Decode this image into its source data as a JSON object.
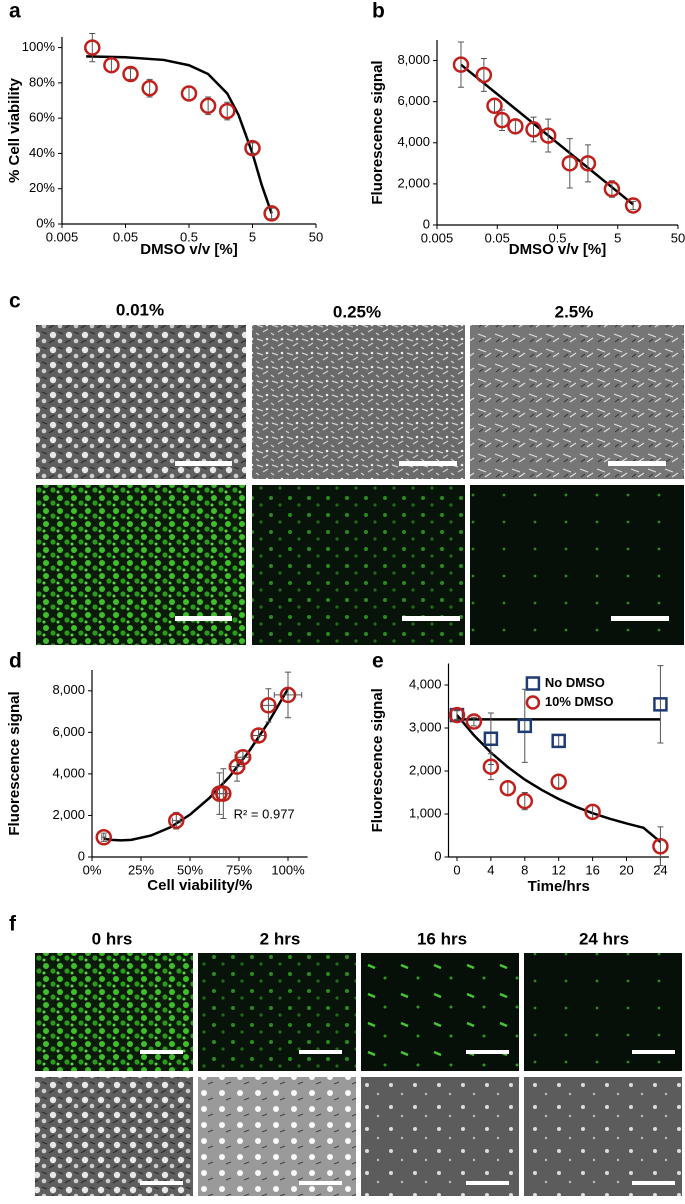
{
  "panel_labels": [
    "a",
    "b",
    "c",
    "d",
    "e",
    "f"
  ],
  "image_panels": {
    "c": {
      "labels": [
        "0.01%",
        "0.25%",
        "2.5%"
      ]
    },
    "f": {
      "labels": [
        "0 hrs",
        "2 hrs",
        "16 hrs",
        "24 hrs"
      ]
    }
  },
  "chart_data": [
    {
      "type": "scatter",
      "xlabel": "DMSO v/v [%]",
      "ylabel": "% Cell viability",
      "x_scale": "log",
      "xlim": [
        0.005,
        50
      ],
      "ylim": [
        0,
        106
      ],
      "xticks": [
        0.005,
        0.05,
        0.5,
        5,
        50
      ],
      "yticks": [
        {
          "value": 0,
          "label": "0%"
        },
        {
          "value": 20,
          "label": "20%"
        },
        {
          "value": 40,
          "label": "40%"
        },
        {
          "value": 60,
          "label": "60%"
        },
        {
          "value": 80,
          "label": "80%"
        },
        {
          "value": 100,
          "label": "100%"
        }
      ],
      "series": [
        {
          "mode": "markers",
          "marker": "circle",
          "color": "#c0201c",
          "x": [
            0.015,
            0.03,
            0.06,
            0.12,
            0.5,
            1,
            2,
            5,
            10
          ],
          "values": [
            100,
            90,
            85,
            77,
            74,
            67,
            64,
            43,
            6
          ],
          "errors": [
            8,
            4,
            3,
            5,
            4,
            5,
            5,
            3,
            3
          ]
        },
        {
          "mode": "line",
          "color": "#000000",
          "x": [
            0.012,
            0.05,
            0.2,
            0.5,
            1,
            2,
            3,
            5,
            7,
            10
          ],
          "values": [
            95,
            94.5,
            93,
            90,
            85,
            74,
            62,
            40,
            22,
            6
          ]
        }
      ]
    },
    {
      "type": "scatter",
      "xlabel": "DMSO v/v [%]",
      "ylabel": "Fluorescence signal",
      "x_scale": "log",
      "xlim": [
        0.005,
        50
      ],
      "ylim": [
        0,
        9000
      ],
      "xticks": [
        0.005,
        0.05,
        0.5,
        5,
        50
      ],
      "yticks": [
        0,
        {
          "value": 2000,
          "label": "2,000"
        },
        {
          "value": 4000,
          "label": "4,000"
        },
        {
          "value": 6000,
          "label": "6,000"
        },
        {
          "value": 8000,
          "label": "8,000"
        }
      ],
      "series": [
        {
          "mode": "markers",
          "marker": "circle",
          "color": "#c0201c",
          "x": [
            0.0125,
            0.03,
            0.045,
            0.06,
            0.1,
            0.2,
            0.35,
            0.8,
            1.6,
            4,
            9
          ],
          "values": [
            7800,
            7300,
            5800,
            5100,
            4800,
            4650,
            4350,
            3000,
            3000,
            1750,
            950
          ],
          "errors": [
            1100,
            800,
            300,
            500,
            300,
            600,
            800,
            1200,
            900,
            400,
            200
          ]
        },
        {
          "mode": "line",
          "color": "#000000",
          "x": [
            0.0125,
            9
          ],
          "values": [
            7800,
            1000
          ]
        }
      ]
    },
    {
      "type": "scatter",
      "xlabel": "Cell viability/%",
      "ylabel": "Fluorescence signal",
      "x_scale": "linear",
      "xlim": [
        0,
        110
      ],
      "ylim": [
        0,
        9000
      ],
      "xticks": [
        {
          "value": 0,
          "label": "0%"
        },
        {
          "value": 25,
          "label": "25%"
        },
        {
          "value": 50,
          "label": "50%"
        },
        {
          "value": 75,
          "label": "75%"
        },
        {
          "value": 100,
          "label": "100%"
        }
      ],
      "yticks": [
        0,
        {
          "value": 2000,
          "label": "2,000"
        },
        {
          "value": 4000,
          "label": "4,000"
        },
        {
          "value": 6000,
          "label": "6,000"
        },
        {
          "value": 8000,
          "label": "8,000"
        }
      ],
      "annotation": "R² = 0.977",
      "series": [
        {
          "mode": "markers",
          "marker": "circle",
          "color": "#c0201c",
          "x": [
            6,
            43,
            65,
            67,
            74,
            77,
            85,
            90,
            100
          ],
          "values": [
            950,
            1750,
            3050,
            3050,
            4350,
            4800,
            5850,
            7300,
            7800
          ],
          "errors": [
            200,
            400,
            1000,
            1200,
            700,
            300,
            300,
            800,
            1100
          ],
          "x_errors": [
            1,
            2,
            3,
            3,
            4,
            4,
            3,
            3,
            7
          ]
        },
        {
          "mode": "line",
          "color": "#000000",
          "x": [
            6,
            10,
            15,
            20,
            30,
            40,
            50,
            60,
            70,
            80,
            90,
            100
          ],
          "values": [
            880,
            825,
            800,
            825,
            1030,
            1430,
            2040,
            2850,
            3850,
            5070,
            6480,
            8100
          ]
        }
      ]
    },
    {
      "type": "scatter",
      "xlabel": "Time/hrs",
      "ylabel": "Fluorescence signal",
      "x_scale": "linear",
      "xlim": [
        -1,
        25
      ],
      "ylim": [
        0,
        4500
      ],
      "xticks": [
        0,
        4,
        8,
        12,
        16,
        20,
        24
      ],
      "yticks": [
        0,
        {
          "value": 1000,
          "label": "1,000"
        },
        {
          "value": 2000,
          "label": "2,000"
        },
        {
          "value": 3000,
          "label": "3,000"
        },
        {
          "value": 4000,
          "label": "4,000"
        }
      ],
      "legend": "upper right",
      "series": [
        {
          "name": "No DMSO",
          "mode": "markers",
          "marker": "square",
          "color": "#1f3b73",
          "x": [
            0,
            4,
            8,
            12,
            24
          ],
          "values": [
            3300,
            2750,
            3050,
            2700,
            3550
          ],
          "errors": [
            100,
            600,
            850,
            150,
            900
          ]
        },
        {
          "name": "10%  DMSO",
          "mode": "markers",
          "marker": "circle",
          "color": "#c0201c",
          "x": [
            0,
            2,
            4,
            6,
            8,
            12,
            16,
            24
          ],
          "values": [
            3300,
            3150,
            2100,
            1600,
            1300,
            1750,
            1050,
            250
          ],
          "errors": [
            150,
            100,
            300,
            150,
            200,
            150,
            150,
            450
          ]
        },
        {
          "mode": "line",
          "color": "#000000",
          "x": [
            0,
            24
          ],
          "values": [
            3200,
            3200
          ]
        },
        {
          "mode": "line",
          "color": "#000000",
          "x": [
            0,
            2,
            4,
            6,
            8,
            10,
            12,
            14,
            16,
            18,
            20,
            22,
            24
          ],
          "values": [
            3300,
            2830,
            2430,
            2090,
            1800,
            1560,
            1350,
            1170,
            1020,
            890,
            780,
            680,
            350
          ]
        }
      ]
    }
  ]
}
